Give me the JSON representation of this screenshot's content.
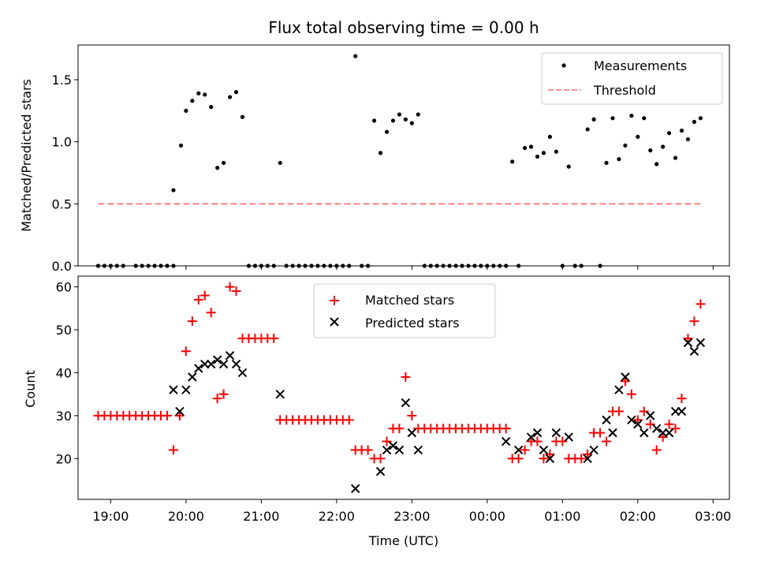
{
  "colors": {
    "measurements": "#000000",
    "threshold": "#ff8080",
    "matched": "#ff0000",
    "predicted": "#000000"
  },
  "chart_data": [
    {
      "type": "scatter",
      "title": "Flux total observing time = 0.00 h",
      "xlabel": "",
      "ylabel": "Matched/Predicted stars",
      "ylim": [
        0,
        1.78
      ],
      "yticks": [
        0.0,
        0.5,
        1.0,
        1.5
      ],
      "ytick_labels": [
        "0.0",
        "0.5",
        "1.0",
        "1.5"
      ],
      "xlim": [
        "18:34",
        "03:13"
      ],
      "grid": false,
      "legend_position": "top-right",
      "legend": [
        "Measurements",
        "Threshold"
      ],
      "series": [
        {
          "name": "Measurements",
          "marker": "dot",
          "points": [
            [
              "18:50",
              0
            ],
            [
              "18:55",
              0
            ],
            [
              "19:00",
              0
            ],
            [
              "19:05",
              0
            ],
            [
              "19:10",
              0
            ],
            [
              "19:20",
              0
            ],
            [
              "19:25",
              0
            ],
            [
              "19:30",
              0
            ],
            [
              "19:35",
              0
            ],
            [
              "19:40",
              0
            ],
            [
              "19:45",
              0
            ],
            [
              "19:50",
              0
            ],
            [
              "19:50",
              0.61
            ],
            [
              "19:56",
              0.97
            ],
            [
              "20:00",
              1.25
            ],
            [
              "20:05",
              1.33
            ],
            [
              "20:10",
              1.39
            ],
            [
              "20:15",
              1.38
            ],
            [
              "20:20",
              1.28
            ],
            [
              "20:25",
              0.79
            ],
            [
              "20:30",
              0.83
            ],
            [
              "20:35",
              1.36
            ],
            [
              "20:40",
              1.4
            ],
            [
              "20:45",
              1.2
            ],
            [
              "20:50",
              0
            ],
            [
              "20:55",
              0
            ],
            [
              "21:00",
              0
            ],
            [
              "21:05",
              0
            ],
            [
              "21:10",
              0
            ],
            [
              "21:15",
              0.83
            ],
            [
              "21:20",
              0
            ],
            [
              "21:25",
              0
            ],
            [
              "21:30",
              0
            ],
            [
              "21:35",
              0
            ],
            [
              "21:40",
              0
            ],
            [
              "21:45",
              0
            ],
            [
              "21:50",
              0
            ],
            [
              "21:55",
              0
            ],
            [
              "22:00",
              0
            ],
            [
              "22:05",
              0
            ],
            [
              "22:10",
              0
            ],
            [
              "22:15",
              1.69
            ],
            [
              "22:20",
              0
            ],
            [
              "22:25",
              0
            ],
            [
              "22:30",
              1.17
            ],
            [
              "22:35",
              0.91
            ],
            [
              "22:40",
              1.08
            ],
            [
              "22:45",
              1.17
            ],
            [
              "22:50",
              1.22
            ],
            [
              "22:55",
              1.18
            ],
            [
              "23:00",
              1.15
            ],
            [
              "23:05",
              1.22
            ],
            [
              "23:10",
              0
            ],
            [
              "23:15",
              0
            ],
            [
              "23:20",
              0
            ],
            [
              "23:25",
              0
            ],
            [
              "23:30",
              0
            ],
            [
              "23:35",
              0
            ],
            [
              "23:40",
              0
            ],
            [
              "23:45",
              0
            ],
            [
              "23:50",
              0
            ],
            [
              "23:55",
              0
            ],
            [
              "00:00",
              0
            ],
            [
              "00:05",
              0
            ],
            [
              "00:10",
              0
            ],
            [
              "00:15",
              0
            ],
            [
              "00:20",
              0.84
            ],
            [
              "00:25",
              0
            ],
            [
              "00:30",
              0.95
            ],
            [
              "00:35",
              0.96
            ],
            [
              "00:40",
              0.88
            ],
            [
              "00:45",
              0.91
            ],
            [
              "00:50",
              1.04
            ],
            [
              "00:55",
              0.92
            ],
            [
              "01:00",
              0
            ],
            [
              "01:05",
              0.8
            ],
            [
              "01:10",
              0
            ],
            [
              "01:15",
              0
            ],
            [
              "01:20",
              1.1
            ],
            [
              "01:25",
              1.18
            ],
            [
              "01:30",
              0
            ],
            [
              "01:35",
              0.83
            ],
            [
              "01:40",
              1.19
            ],
            [
              "01:45",
              0.86
            ],
            [
              "01:50",
              0.97
            ],
            [
              "01:55",
              1.21
            ],
            [
              "02:00",
              1.04
            ],
            [
              "02:05",
              1.19
            ],
            [
              "02:10",
              0.93
            ],
            [
              "02:15",
              0.82
            ],
            [
              "02:20",
              0.96
            ],
            [
              "02:25",
              1.07
            ],
            [
              "02:30",
              0.87
            ],
            [
              "02:35",
              1.09
            ],
            [
              "02:40",
              1.02
            ],
            [
              "02:45",
              1.16
            ],
            [
              "02:50",
              1.19
            ]
          ]
        },
        {
          "name": "Threshold",
          "style": "dashed",
          "x_range": [
            "18:50",
            "02:50"
          ],
          "y": 0.5
        }
      ]
    },
    {
      "type": "scatter",
      "title": "",
      "xlabel": "Time (UTC)",
      "ylabel": "Count",
      "ylim": [
        10.5,
        62.5
      ],
      "yticks": [
        20,
        30,
        40,
        50,
        60
      ],
      "ytick_labels": [
        "20",
        "30",
        "40",
        "50",
        "60"
      ],
      "xticks": [
        "19:00",
        "20:00",
        "21:00",
        "22:00",
        "23:00",
        "00:00",
        "01:00",
        "02:00",
        "03:00"
      ],
      "xtick_labels": [
        "19:00",
        "20:00",
        "21:00",
        "22:00",
        "23:00",
        "00:00",
        "01:00",
        "02:00",
        "03:00"
      ],
      "xlim": [
        "18:34",
        "03:13"
      ],
      "grid": false,
      "legend_position": "top-center",
      "legend": [
        "Matched stars",
        "Predicted stars"
      ],
      "series": [
        {
          "name": "Matched stars",
          "marker": "plus",
          "points": [
            [
              "18:50",
              30
            ],
            [
              "18:55",
              30
            ],
            [
              "19:00",
              30
            ],
            [
              "19:05",
              30
            ],
            [
              "19:10",
              30
            ],
            [
              "19:15",
              30
            ],
            [
              "19:20",
              30
            ],
            [
              "19:25",
              30
            ],
            [
              "19:30",
              30
            ],
            [
              "19:35",
              30
            ],
            [
              "19:40",
              30
            ],
            [
              "19:45",
              30
            ],
            [
              "19:50",
              22
            ],
            [
              "19:55",
              30
            ],
            [
              "20:00",
              45
            ],
            [
              "20:05",
              52
            ],
            [
              "20:10",
              57
            ],
            [
              "20:15",
              58
            ],
            [
              "20:20",
              54
            ],
            [
              "20:25",
              34
            ],
            [
              "20:30",
              35
            ],
            [
              "20:35",
              60
            ],
            [
              "20:40",
              59
            ],
            [
              "20:45",
              48
            ],
            [
              "20:50",
              48
            ],
            [
              "20:55",
              48
            ],
            [
              "21:00",
              48
            ],
            [
              "21:05",
              48
            ],
            [
              "21:10",
              48
            ],
            [
              "21:15",
              29
            ],
            [
              "21:20",
              29
            ],
            [
              "21:25",
              29
            ],
            [
              "21:30",
              29
            ],
            [
              "21:35",
              29
            ],
            [
              "21:40",
              29
            ],
            [
              "21:45",
              29
            ],
            [
              "21:50",
              29
            ],
            [
              "21:55",
              29
            ],
            [
              "22:00",
              29
            ],
            [
              "22:05",
              29
            ],
            [
              "22:10",
              29
            ],
            [
              "22:15",
              22
            ],
            [
              "22:20",
              22
            ],
            [
              "22:25",
              22
            ],
            [
              "22:30",
              20
            ],
            [
              "22:35",
              20
            ],
            [
              "22:40",
              24
            ],
            [
              "22:45",
              27
            ],
            [
              "22:50",
              27
            ],
            [
              "22:55",
              39
            ],
            [
              "23:00",
              30
            ],
            [
              "23:05",
              27
            ],
            [
              "23:10",
              27
            ],
            [
              "23:15",
              27
            ],
            [
              "23:20",
              27
            ],
            [
              "23:25",
              27
            ],
            [
              "23:30",
              27
            ],
            [
              "23:35",
              27
            ],
            [
              "23:40",
              27
            ],
            [
              "23:45",
              27
            ],
            [
              "23:50",
              27
            ],
            [
              "23:55",
              27
            ],
            [
              "00:00",
              27
            ],
            [
              "00:05",
              27
            ],
            [
              "00:10",
              27
            ],
            [
              "00:15",
              27
            ],
            [
              "00:20",
              20
            ],
            [
              "00:25",
              20
            ],
            [
              "00:30",
              22
            ],
            [
              "00:35",
              24
            ],
            [
              "00:40",
              24
            ],
            [
              "00:45",
              20
            ],
            [
              "00:50",
              21
            ],
            [
              "00:55",
              24
            ],
            [
              "01:00",
              24
            ],
            [
              "01:05",
              20
            ],
            [
              "01:10",
              20
            ],
            [
              "01:15",
              20
            ],
            [
              "01:20",
              21
            ],
            [
              "01:25",
              26
            ],
            [
              "01:30",
              26
            ],
            [
              "01:35",
              24
            ],
            [
              "01:40",
              31
            ],
            [
              "01:45",
              31
            ],
            [
              "01:50",
              38
            ],
            [
              "01:55",
              35
            ],
            [
              "02:00",
              29
            ],
            [
              "02:05",
              31
            ],
            [
              "02:10",
              28
            ],
            [
              "02:15",
              22
            ],
            [
              "02:20",
              25
            ],
            [
              "02:25",
              28
            ],
            [
              "02:30",
              27
            ],
            [
              "02:35",
              34
            ],
            [
              "02:40",
              48
            ],
            [
              "02:45",
              52
            ],
            [
              "02:50",
              56
            ]
          ]
        },
        {
          "name": "Predicted stars",
          "marker": "x",
          "points": [
            [
              "19:50",
              36
            ],
            [
              "19:55",
              31
            ],
            [
              "20:00",
              36
            ],
            [
              "20:05",
              39
            ],
            [
              "20:10",
              41
            ],
            [
              "20:15",
              42
            ],
            [
              "20:20",
              42
            ],
            [
              "20:25",
              43
            ],
            [
              "20:30",
              42
            ],
            [
              "20:35",
              44
            ],
            [
              "20:40",
              42
            ],
            [
              "20:45",
              40
            ],
            [
              "21:15",
              35
            ],
            [
              "22:15",
              13
            ],
            [
              "22:35",
              17
            ],
            [
              "22:40",
              22
            ],
            [
              "22:45",
              23
            ],
            [
              "22:50",
              22
            ],
            [
              "22:55",
              33
            ],
            [
              "23:00",
              26
            ],
            [
              "23:05",
              22
            ],
            [
              "00:15",
              24
            ],
            [
              "00:25",
              22
            ],
            [
              "00:35",
              25
            ],
            [
              "00:40",
              26
            ],
            [
              "00:45",
              22
            ],
            [
              "00:50",
              20
            ],
            [
              "00:55",
              26
            ],
            [
              "01:05",
              25
            ],
            [
              "01:20",
              20
            ],
            [
              "01:25",
              22
            ],
            [
              "01:35",
              29
            ],
            [
              "01:40",
              26
            ],
            [
              "01:45",
              36
            ],
            [
              "01:50",
              39
            ],
            [
              "01:55",
              29
            ],
            [
              "02:00",
              28
            ],
            [
              "02:05",
              26
            ],
            [
              "02:10",
              30
            ],
            [
              "02:15",
              27
            ],
            [
              "02:20",
              26
            ],
            [
              "02:25",
              26
            ],
            [
              "02:30",
              31
            ],
            [
              "02:35",
              31
            ],
            [
              "02:40",
              47
            ],
            [
              "02:45",
              45
            ],
            [
              "02:50",
              47
            ]
          ]
        }
      ]
    }
  ]
}
